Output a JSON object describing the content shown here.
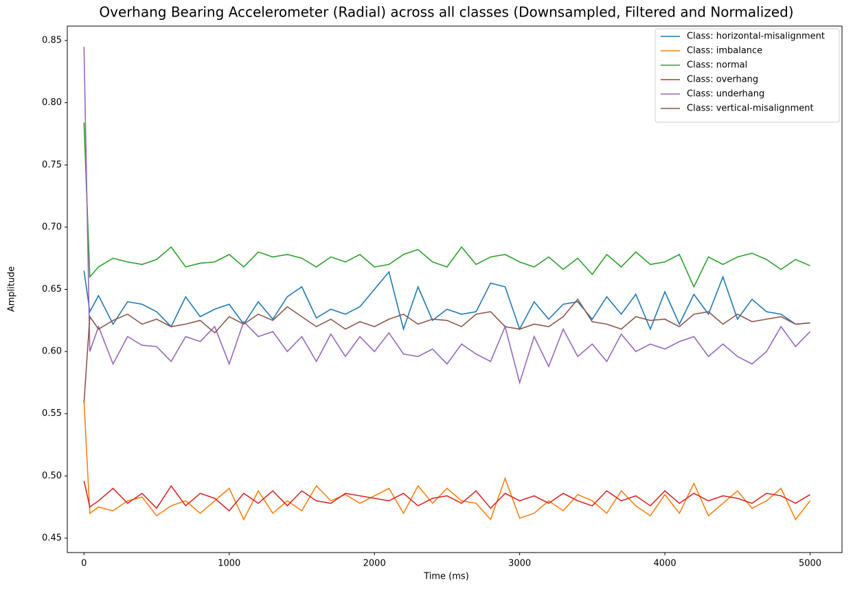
{
  "chart_data": {
    "type": "line",
    "title": "Overhang Bearing Accelerometer (Radial) across all classes (Downsampled, Filtered and Normalized)",
    "x_label": "Time (ms)",
    "y_label": "Amplitude",
    "x": [
      0,
      40,
      100,
      200,
      300,
      400,
      500,
      600,
      700,
      800,
      900,
      1000,
      1100,
      1200,
      1300,
      1400,
      1500,
      1600,
      1700,
      1800,
      1900,
      2000,
      2100,
      2200,
      2300,
      2400,
      2500,
      2600,
      2700,
      2800,
      2900,
      3000,
      3100,
      3200,
      3300,
      3400,
      3500,
      3600,
      3700,
      3800,
      3900,
      4000,
      4100,
      4200,
      4300,
      4400,
      4500,
      4600,
      4700,
      4800,
      4900,
      5000
    ],
    "xlim": [
      -115,
      5220
    ],
    "xticks": [
      0,
      1000,
      2000,
      3000,
      4000,
      5000
    ],
    "ylim": [
      0.4384,
      0.8616
    ],
    "yticks": [
      0.45,
      {
        "value": 0.5,
        "label": "0.50"
      },
      0.55,
      {
        "value": 0.6,
        "label": "0.60"
      },
      0.65,
      {
        "value": 0.7,
        "label": "0.70"
      },
      0.75,
      {
        "value": 0.8,
        "label": "0.80"
      },
      0.85
    ],
    "grid": false,
    "legend": "upper right",
    "series": [
      {
        "name": "Class: horizontal-misalignment",
        "color": "#1f77b4",
        "values": [
          0.665,
          0.632,
          0.645,
          0.622,
          0.64,
          0.638,
          0.632,
          0.62,
          0.644,
          0.628,
          0.634,
          0.638,
          0.622,
          0.64,
          0.626,
          0.644,
          0.652,
          0.627,
          0.634,
          0.63,
          0.636,
          0.65,
          0.664,
          0.618,
          0.652,
          0.625,
          0.634,
          0.63,
          0.632,
          0.655,
          0.652,
          0.618,
          0.64,
          0.626,
          0.638,
          0.64,
          0.626,
          0.644,
          0.63,
          0.646,
          0.618,
          0.648,
          0.622,
          0.646,
          0.63,
          0.66,
          0.626,
          0.642,
          0.632,
          0.63,
          0.622,
          0.623
        ]
      },
      {
        "name": "Class: imbalance",
        "color": "#ff7f0e",
        "values": [
          0.56,
          0.47,
          0.475,
          0.472,
          0.48,
          0.483,
          0.468,
          0.476,
          0.48,
          0.47,
          0.48,
          0.49,
          0.465,
          0.488,
          0.47,
          0.48,
          0.472,
          0.492,
          0.48,
          0.485,
          0.478,
          0.484,
          0.49,
          0.47,
          0.492,
          0.478,
          0.49,
          0.48,
          0.478,
          0.465,
          0.498,
          0.466,
          0.47,
          0.48,
          0.472,
          0.485,
          0.48,
          0.47,
          0.488,
          0.476,
          0.468,
          0.485,
          0.47,
          0.494,
          0.468,
          0.478,
          0.488,
          0.474,
          0.48,
          0.49,
          0.465,
          0.48
        ]
      },
      {
        "name": "Class: normal",
        "color": "#2ca02c",
        "values": [
          0.784,
          0.66,
          0.668,
          0.675,
          0.672,
          0.67,
          0.674,
          0.684,
          0.668,
          0.671,
          0.672,
          0.678,
          0.668,
          0.68,
          0.676,
          0.678,
          0.675,
          0.668,
          0.676,
          0.672,
          0.678,
          0.668,
          0.67,
          0.678,
          0.682,
          0.672,
          0.668,
          0.684,
          0.67,
          0.676,
          0.678,
          0.672,
          0.668,
          0.676,
          0.666,
          0.675,
          0.662,
          0.678,
          0.668,
          0.68,
          0.67,
          0.672,
          0.678,
          0.652,
          0.676,
          0.67,
          0.676,
          0.679,
          0.674,
          0.666,
          0.674,
          0.669
        ]
      },
      {
        "name": "Class: overhang",
        "color": "#d62728",
        "values": [
          0.496,
          0.475,
          0.48,
          0.49,
          0.478,
          0.486,
          0.474,
          0.492,
          0.476,
          0.486,
          0.482,
          0.472,
          0.486,
          0.478,
          0.488,
          0.476,
          0.488,
          0.48,
          0.478,
          0.486,
          0.484,
          0.482,
          0.48,
          0.486,
          0.476,
          0.482,
          0.484,
          0.478,
          0.488,
          0.474,
          0.486,
          0.48,
          0.484,
          0.478,
          0.486,
          0.48,
          0.476,
          0.488,
          0.48,
          0.484,
          0.476,
          0.488,
          0.478,
          0.486,
          0.48,
          0.484,
          0.482,
          0.478,
          0.486,
          0.484,
          0.478,
          0.485
        ]
      },
      {
        "name": "Class: underhang",
        "color": "#9467bd",
        "values": [
          0.845,
          0.6,
          0.62,
          0.59,
          0.612,
          0.605,
          0.604,
          0.592,
          0.612,
          0.608,
          0.62,
          0.59,
          0.624,
          0.612,
          0.616,
          0.6,
          0.612,
          0.592,
          0.614,
          0.596,
          0.612,
          0.6,
          0.615,
          0.598,
          0.596,
          0.602,
          0.59,
          0.606,
          0.598,
          0.592,
          0.62,
          0.575,
          0.612,
          0.588,
          0.618,
          0.596,
          0.606,
          0.592,
          0.614,
          0.6,
          0.606,
          0.602,
          0.608,
          0.612,
          0.596,
          0.606,
          0.596,
          0.59,
          0.6,
          0.62,
          0.604,
          0.616
        ]
      },
      {
        "name": "Class: vertical-misalignment",
        "color": "#8c564b",
        "values": [
          0.559,
          0.628,
          0.618,
          0.625,
          0.63,
          0.622,
          0.626,
          0.62,
          0.622,
          0.625,
          0.615,
          0.628,
          0.622,
          0.63,
          0.625,
          0.636,
          0.628,
          0.62,
          0.626,
          0.618,
          0.624,
          0.62,
          0.626,
          0.63,
          0.622,
          0.626,
          0.625,
          0.62,
          0.63,
          0.632,
          0.62,
          0.618,
          0.622,
          0.62,
          0.628,
          0.642,
          0.624,
          0.622,
          0.618,
          0.628,
          0.625,
          0.626,
          0.62,
          0.63,
          0.632,
          0.622,
          0.63,
          0.624,
          0.626,
          0.628,
          0.622,
          0.623
        ]
      }
    ]
  }
}
